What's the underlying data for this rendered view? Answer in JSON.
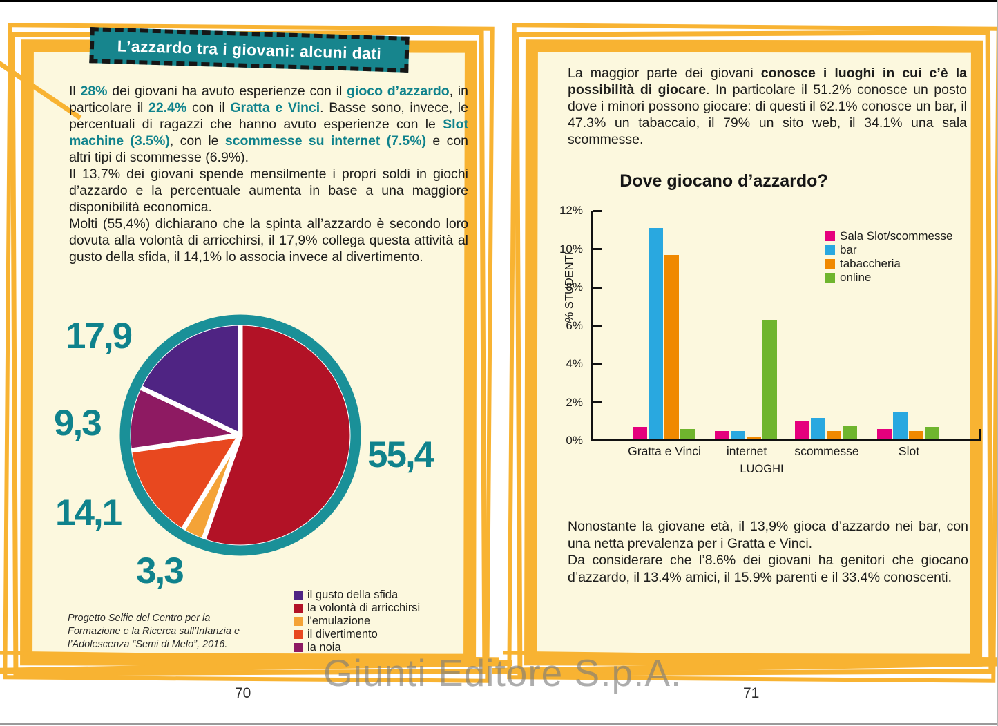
{
  "watermark": "Giunti Editore S.p.A.",
  "colors": {
    "frame_orange": "#F8B332",
    "page_cream": "#FCF8DE",
    "accent_teal": "#17858D",
    "teal_text": "#0F828C",
    "pie_ring_teal": "#1A9098"
  },
  "left_page": {
    "page_number": "70",
    "banner_title": "L’azzardo tra i giovani: alcuni dati",
    "paragraphs": [
      [
        {
          "t": "Il ",
          "s": "plain"
        },
        {
          "t": "28%",
          "s": "teal"
        },
        {
          "t": " dei giovani ha avuto esperienze con il ",
          "s": "plain"
        },
        {
          "t": "gioco d’azzardo",
          "s": "teal"
        },
        {
          "t": ", in particolare il ",
          "s": "plain"
        },
        {
          "t": "22.4%",
          "s": "teal"
        },
        {
          "t": " con il ",
          "s": "plain"
        },
        {
          "t": "Gratta e Vinci",
          "s": "teal"
        },
        {
          "t": ". Basse sono, invece, le percentuali di ragazzi che hanno avuto esperienze con le ",
          "s": "plain"
        },
        {
          "t": "Slot machine (3.5%)",
          "s": "teal"
        },
        {
          "t": ", con le ",
          "s": "plain"
        },
        {
          "t": "scommesse su internet (7.5%)",
          "s": "teal"
        },
        {
          "t": " e con altri tipi di scommesse (6.9%).",
          "s": "plain"
        }
      ],
      [
        {
          "t": "Il 13,7% dei giovani spende mensilmente i propri soldi in giochi d’azzardo e la percentuale aumenta in base a una maggiore disponibilità economica.",
          "s": "plain"
        }
      ],
      [
        {
          "t": "Molti (55,4%) dichiarano che la spinta all’azzardo è secondo loro dovuta alla volontà di arricchirsi, il 17,9% collega questa attività al gusto della sfida, il 14,1% lo associa invece al divertimento.",
          "s": "plain"
        }
      ]
    ],
    "legend": [
      {
        "label": "il gusto della sfida",
        "color": "#4F2483"
      },
      {
        "label": "la volontà di arricchirsi",
        "color": "#B21226"
      },
      {
        "label": "l'emulazione",
        "color": "#F4A337"
      },
      {
        "label": "il divertimento",
        "color": "#E8481F"
      },
      {
        "label": "la noia",
        "color": "#8E1A62"
      }
    ],
    "source_note": "Progetto Selfie del Centro per la Formazione e la Ricerca sull’Infanzia e l’Adolescenza “Semi di Melo”, 2016."
  },
  "right_page": {
    "page_number": "71",
    "paragraphs_top": [
      [
        {
          "t": "La maggior parte dei giovani ",
          "s": "plain"
        },
        {
          "t": "conosce i luoghi in cui c’è la possibilità di giocare",
          "s": "boldblack"
        },
        {
          "t": ". In particolare il 51.2% conosce un posto dove i minori possono giocare: di questi il 62.1% conosce un bar, il 47.3% un tabaccaio, il 79% un sito web, il 34.1% una sala scommesse.",
          "s": "plain"
        }
      ]
    ],
    "paragraphs_bottom": [
      [
        {
          "t": "Nonostante la giovane età, il 13,9% gioca d’azzardo nei bar, con una netta prevalenza per i Gratta e Vinci.",
          "s": "plain"
        }
      ],
      [
        {
          "t": "Da considerare che l’8.6% dei giovani ha genitori che giocano d’azzardo, il 13.4% amici, il 15.9% parenti e il 33.4% conoscenti.",
          "s": "plain"
        }
      ]
    ]
  },
  "chart_data": [
    {
      "type": "pie",
      "title": "",
      "slices": [
        {
          "label": "la volontà di arricchirsi",
          "value": 55.4,
          "display": "55,4",
          "color": "#B21226"
        },
        {
          "label": "l'emulazione",
          "value": 3.3,
          "display": "3,3",
          "color": "#F4A337"
        },
        {
          "label": "il divertimento",
          "value": 14.1,
          "display": "14,1",
          "color": "#E8481F"
        },
        {
          "label": "la noia",
          "value": 9.3,
          "display": "9,3",
          "color": "#8E1A62"
        },
        {
          "label": "il gusto della sfida",
          "value": 17.9,
          "display": "17,9",
          "color": "#4F2483"
        }
      ],
      "start": "12-o'clock, clockwise",
      "ring_color": "#1A9098",
      "legend_position": "bottom-right"
    },
    {
      "type": "bar",
      "title": "Dove giocano d’azzardo?",
      "categories": [
        "Gratta e Vinci",
        "internet",
        "scommesse",
        "Slot"
      ],
      "series": [
        {
          "name": "Sala Slot/scommesse",
          "color": "#E5007D",
          "values": [
            0.6,
            0.4,
            0.9,
            0.5
          ]
        },
        {
          "name": "bar",
          "color": "#29A8E0",
          "values": [
            11.0,
            0.4,
            1.1,
            1.4
          ]
        },
        {
          "name": "tabaccheria",
          "color": "#F08900",
          "values": [
            9.6,
            0.1,
            0.4,
            0.4
          ]
        },
        {
          "name": "online",
          "color": "#6FB52E",
          "values": [
            0.5,
            6.2,
            0.7,
            0.6
          ]
        }
      ],
      "xlabel": "LUOGHI",
      "ylabel": "% STUDENTI",
      "ylim": [
        0,
        12
      ],
      "yticks": [
        "0%",
        "2%",
        "4%",
        "6%",
        "8%",
        "10%",
        "12%"
      ],
      "grid": false,
      "legend_position": "upper-right"
    }
  ]
}
